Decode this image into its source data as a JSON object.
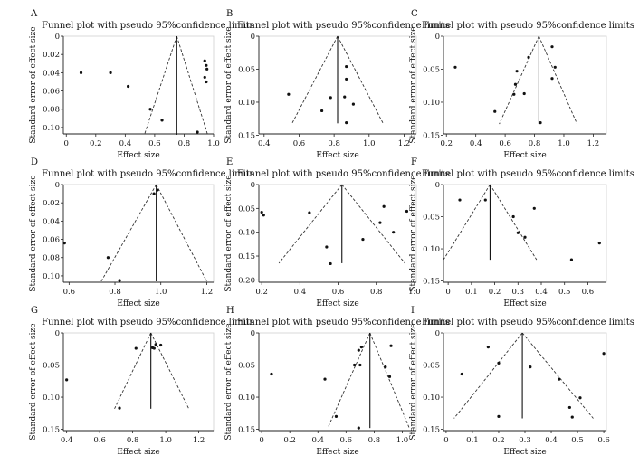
{
  "figure": {
    "title_text": "Funnel plot with pseudo 95%confidence limits",
    "x_axis_label": "Effect size",
    "y_axis_label": "Standard error of effect size"
  },
  "chart_data": [
    {
      "type": "scatter",
      "panel": "A",
      "title": "Funnel plot with pseudo 95%confidence limits",
      "xlabel": "Effect size",
      "ylabel": "Standard error of effect size",
      "xlim": [
        -0.02,
        1.0
      ],
      "ylim": [
        0.107,
        0.0
      ],
      "y_reversed": true,
      "xticks": [
        0,
        0.2,
        0.4,
        0.6,
        0.8,
        1.0
      ],
      "xtick_labels": [
        "0",
        "0.2",
        "0.4",
        "0.6",
        "0.8",
        "1.0"
      ],
      "yticks": [
        0,
        0.02,
        0.04,
        0.06,
        0.08,
        0.1
      ],
      "ytick_labels": [
        "0",
        "0.02",
        "0.04",
        "0.06",
        "0.08",
        "0.10"
      ],
      "pooled_effect": 0.75,
      "funnel": {
        "apex": [
          0.75,
          0.0
        ],
        "left": [
          0.53,
          0.108
        ],
        "right": [
          0.96,
          0.108
        ]
      },
      "points": [
        [
          0.1,
          0.04
        ],
        [
          0.3,
          0.04
        ],
        [
          0.42,
          0.055
        ],
        [
          0.57,
          0.08
        ],
        [
          0.65,
          0.092
        ],
        [
          0.89,
          0.105
        ],
        [
          0.94,
          0.027
        ],
        [
          0.95,
          0.032
        ],
        [
          0.955,
          0.036
        ],
        [
          0.94,
          0.045
        ],
        [
          0.95,
          0.05
        ]
      ],
      "grid": false
    },
    {
      "type": "scatter",
      "panel": "B",
      "title": "Funnel plot with pseudo 95%confidence limits",
      "xlabel": "Effect size",
      "ylabel": "Standard error of effect size",
      "xlim": [
        0.37,
        1.27
      ],
      "ylim": [
        0.148,
        0.0
      ],
      "y_reversed": true,
      "xticks": [
        0.4,
        0.6,
        0.8,
        1.0,
        1.2
      ],
      "xtick_labels": [
        "0.4",
        "0.6",
        "0.8",
        "1.0",
        "1.2"
      ],
      "yticks": [
        0,
        0.05,
        0.1,
        0.15
      ],
      "ytick_labels": [
        "0",
        "0.05",
        "0.10",
        "0.15"
      ],
      "pooled_effect": 0.82,
      "funnel": {
        "apex": [
          0.82,
          0.0
        ],
        "left": [
          0.56,
          0.132
        ],
        "right": [
          1.08,
          0.132
        ]
      },
      "points": [
        [
          0.54,
          0.088
        ],
        [
          0.73,
          0.113
        ],
        [
          0.78,
          0.093
        ],
        [
          0.87,
          0.046
        ],
        [
          0.87,
          0.065
        ],
        [
          0.86,
          0.092
        ],
        [
          0.91,
          0.103
        ],
        [
          0.87,
          0.131
        ]
      ],
      "grid": false
    },
    {
      "type": "scatter",
      "panel": "C",
      "title": "Funnel plot with pseudo 95%confidence limits",
      "xlabel": "Effect size",
      "ylabel": "Standard error of effect size",
      "xlim": [
        0.18,
        1.29
      ],
      "ylim": [
        0.148,
        0.0
      ],
      "y_reversed": true,
      "xticks": [
        0.2,
        0.4,
        0.6,
        0.8,
        1.0,
        1.2
      ],
      "xtick_labels": [
        "0.2",
        "0.4",
        "0.6",
        "0.8",
        "1.0",
        "1.2"
      ],
      "yticks": [
        0,
        0.05,
        0.1,
        0.15
      ],
      "ytick_labels": [
        "0",
        "0.05",
        "0.10",
        "0.15"
      ],
      "pooled_effect": 0.83,
      "funnel": {
        "apex": [
          0.83,
          0.0
        ],
        "left": [
          0.56,
          0.133
        ],
        "right": [
          1.09,
          0.133
        ]
      },
      "points": [
        [
          0.26,
          0.047
        ],
        [
          0.53,
          0.114
        ],
        [
          0.68,
          0.053
        ],
        [
          0.67,
          0.073
        ],
        [
          0.66,
          0.088
        ],
        [
          0.73,
          0.087
        ],
        [
          0.76,
          0.032
        ],
        [
          0.84,
          0.131
        ],
        [
          0.92,
          0.016
        ],
        [
          0.94,
          0.047
        ],
        [
          0.92,
          0.064
        ]
      ],
      "grid": false
    },
    {
      "type": "scatter",
      "panel": "D",
      "title": "Funnel plot with pseudo 95%confidence limits",
      "xlabel": "Effect size",
      "ylabel": "Standard error of effect size",
      "xlim": [
        0.575,
        1.23
      ],
      "ylim": [
        0.107,
        0.0
      ],
      "y_reversed": true,
      "xticks": [
        0.6,
        0.8,
        1.0,
        1.2
      ],
      "xtick_labels": [
        "0.6",
        "0.8",
        "1.0",
        "1.2"
      ],
      "yticks": [
        0,
        0.02,
        0.04,
        0.06,
        0.08,
        0.1
      ],
      "ytick_labels": [
        "0",
        "0.02",
        "0.04",
        "0.06",
        "0.08",
        "0.10"
      ],
      "pooled_effect": 0.98,
      "funnel": {
        "apex": [
          0.98,
          0.0
        ],
        "left": [
          0.74,
          0.106
        ],
        "right": [
          1.2,
          0.106
        ]
      },
      "points": [
        [
          0.58,
          0.064
        ],
        [
          0.77,
          0.08
        ],
        [
          0.82,
          0.105
        ],
        [
          0.97,
          0.01
        ],
        [
          0.985,
          0.006
        ]
      ],
      "grid": false
    },
    {
      "type": "scatter",
      "panel": "E",
      "title": "Funnel plot with pseudo 95%confidence limits",
      "xlabel": "Effect size",
      "ylabel": "Standard error of effect size",
      "xlim": [
        0.185,
        1.01
      ],
      "ylim": [
        0.205,
        0.0
      ],
      "y_reversed": true,
      "xticks": [
        0.2,
        0.4,
        0.6,
        0.8,
        1.0
      ],
      "xtick_labels": [
        "0.2",
        "0.4",
        "0.6",
        "0.8",
        "1.0"
      ],
      "yticks": [
        0,
        0.05,
        0.1,
        0.15,
        0.2
      ],
      "ytick_labels": [
        "0",
        "0.05",
        "0.10",
        "0.15",
        "0.20"
      ],
      "pooled_effect": 0.62,
      "funnel": {
        "apex": [
          0.62,
          0.0
        ],
        "left": [
          0.29,
          0.165
        ],
        "right": [
          0.95,
          0.165
        ]
      },
      "points": [
        [
          0.2,
          0.058
        ],
        [
          0.21,
          0.064
        ],
        [
          0.45,
          0.059
        ],
        [
          0.54,
          0.131
        ],
        [
          0.56,
          0.166
        ],
        [
          0.73,
          0.115
        ],
        [
          0.82,
          0.08
        ],
        [
          0.84,
          0.046
        ],
        [
          0.89,
          0.1
        ],
        [
          0.96,
          0.056
        ]
      ],
      "grid": false
    },
    {
      "type": "scatter",
      "panel": "F",
      "title": "Funnel plot with pseudo 95%confidence limits",
      "xlabel": "Effect size",
      "ylabel": "Standard error of effect size",
      "xlim": [
        -0.02,
        0.68
      ],
      "ylim": [
        0.152,
        0.0
      ],
      "y_reversed": true,
      "xticks": [
        0,
        0.1,
        0.2,
        0.3,
        0.4,
        0.5,
        0.6
      ],
      "xtick_labels": [
        "0",
        "0.1",
        "0.2",
        "0.3",
        "0.4",
        "0.5",
        "0.6"
      ],
      "yticks": [
        0,
        0.05,
        0.1,
        0.15
      ],
      "ytick_labels": [
        "0",
        "0.05",
        "0.10",
        "0.15"
      ],
      "pooled_effect": 0.18,
      "funnel": {
        "apex": [
          0.18,
          0.0
        ],
        "left": [
          -0.02,
          0.117
        ],
        "right": [
          0.38,
          0.117
        ]
      },
      "points": [
        [
          0.05,
          0.024
        ],
        [
          0.16,
          0.024
        ],
        [
          0.28,
          0.05
        ],
        [
          0.3,
          0.075
        ],
        [
          0.33,
          0.082
        ],
        [
          0.37,
          0.037
        ],
        [
          0.53,
          0.117
        ],
        [
          0.65,
          0.091
        ]
      ],
      "grid": false
    },
    {
      "type": "scatter",
      "panel": "G",
      "title": "Funnel plot with pseudo 95%confidence limits",
      "xlabel": "Effect size",
      "ylabel": "Standard error of effect size",
      "xlim": [
        0.38,
        1.29
      ],
      "ylim": [
        0.152,
        0.0
      ],
      "y_reversed": true,
      "xticks": [
        0.4,
        0.6,
        0.8,
        1.0,
        1.2
      ],
      "xtick_labels": [
        "0.4",
        "0.6",
        "0.8",
        "1.0",
        "1.2"
      ],
      "yticks": [
        0,
        0.05,
        0.1,
        0.15
      ],
      "ytick_labels": [
        "0",
        "0.05",
        "0.10",
        "0.15"
      ],
      "pooled_effect": 0.91,
      "funnel": {
        "apex": [
          0.91,
          0.0
        ],
        "left": [
          0.69,
          0.118
        ],
        "right": [
          1.14,
          0.118
        ]
      },
      "points": [
        [
          0.4,
          0.073
        ],
        [
          0.72,
          0.117
        ],
        [
          0.82,
          0.024
        ],
        [
          0.92,
          0.023
        ],
        [
          0.93,
          0.024
        ],
        [
          0.94,
          0.018
        ],
        [
          0.97,
          0.019
        ]
      ],
      "grid": false
    },
    {
      "type": "scatter",
      "panel": "H",
      "title": "Funnel plot with pseudo 95%confidence limits",
      "xlabel": "Effect size",
      "ylabel": "Standard error of effect size",
      "xlim": [
        -0.02,
        1.1
      ],
      "ylim": [
        0.152,
        0.0
      ],
      "y_reversed": true,
      "xticks": [
        0,
        0.2,
        0.4,
        0.6,
        0.8,
        1.0
      ],
      "xtick_labels": [
        "0",
        "0.2",
        "0.4",
        "0.6",
        "0.8",
        "1.0"
      ],
      "yticks": [
        0,
        0.05,
        0.1,
        0.15
      ],
      "ytick_labels": [
        "0",
        "0.05",
        "0.10",
        "0.15"
      ],
      "pooled_effect": 0.77,
      "funnel": {
        "apex": [
          0.77,
          0.0
        ],
        "left": [
          0.47,
          0.148
        ],
        "right": [
          1.05,
          0.148
        ]
      },
      "points": [
        [
          0.07,
          0.064
        ],
        [
          0.45,
          0.072
        ],
        [
          0.53,
          0.13
        ],
        [
          0.66,
          0.05
        ],
        [
          0.69,
          0.027
        ],
        [
          0.7,
          0.05
        ],
        [
          0.71,
          0.022
        ],
        [
          0.88,
          0.053
        ],
        [
          0.91,
          0.068
        ],
        [
          0.92,
          0.02
        ],
        [
          0.69,
          0.148
        ]
      ],
      "grid": false
    },
    {
      "type": "scatter",
      "panel": "I",
      "title": "Funnel plot with pseudo 95%confidence limits",
      "xlabel": "Effect size",
      "ylabel": "Standard error of effect size",
      "xlim": [
        -0.01,
        0.61
      ],
      "ylim": [
        0.152,
        0.0
      ],
      "y_reversed": true,
      "xticks": [
        0,
        0.1,
        0.2,
        0.3,
        0.4,
        0.5,
        0.6
      ],
      "xtick_labels": [
        "0",
        "0.1",
        "0.2",
        "0.3",
        "0.4",
        "0.5",
        "0.6"
      ],
      "yticks": [
        0,
        0.05,
        0.1,
        0.15
      ],
      "ytick_labels": [
        "0",
        "0.05",
        "0.10",
        "0.15"
      ],
      "pooled_effect": 0.29,
      "funnel": {
        "apex": [
          0.29,
          0.0
        ],
        "left": [
          0.03,
          0.133
        ],
        "right": [
          0.56,
          0.133
        ]
      },
      "points": [
        [
          0.06,
          0.064
        ],
        [
          0.16,
          0.022
        ],
        [
          0.2,
          0.047
        ],
        [
          0.2,
          0.13
        ],
        [
          0.32,
          0.053
        ],
        [
          0.43,
          0.072
        ],
        [
          0.47,
          0.116
        ],
        [
          0.48,
          0.131
        ],
        [
          0.51,
          0.101
        ],
        [
          0.6,
          0.032
        ]
      ],
      "grid": false
    }
  ]
}
